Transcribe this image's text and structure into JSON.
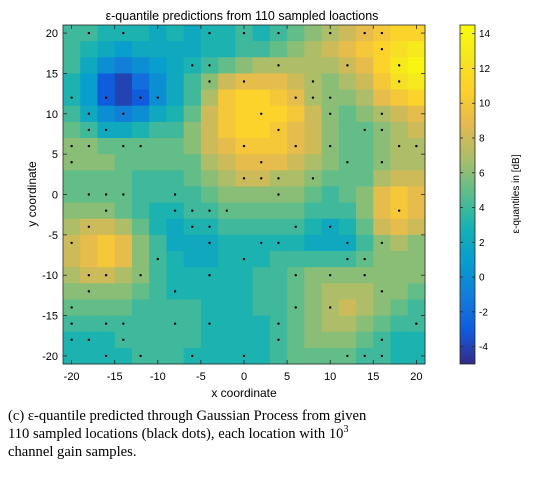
{
  "chart_data": {
    "type": "heatmap",
    "title": "ε-quantile predictions from 110 sampled loactions",
    "xlabel": "x coordinate",
    "ylabel": "y coordinate",
    "colorbar_label": "ε-quantiles in [dB]",
    "xlim": [
      -21,
      21
    ],
    "ylim": [
      -21,
      21
    ],
    "clim": [
      -5,
      14.5
    ],
    "colormap": "parula",
    "x_ticks": [
      -20,
      -15,
      -10,
      -5,
      0,
      5,
      10,
      15,
      20
    ],
    "y_ticks": [
      -20,
      -15,
      -10,
      -5,
      0,
      5,
      10,
      15,
      20
    ],
    "colorbar_ticks": [
      -4,
      -2,
      0,
      2,
      4,
      6,
      8,
      10,
      12,
      14
    ],
    "grid": false,
    "x": [
      -20,
      -18,
      -16,
      -14,
      -12,
      -10,
      -8,
      -6,
      -4,
      -2,
      0,
      2,
      4,
      6,
      8,
      10,
      12,
      14,
      16,
      18,
      20
    ],
    "y": [
      20,
      18,
      16,
      14,
      12,
      10,
      8,
      6,
      4,
      2,
      0,
      -2,
      -4,
      -6,
      -8,
      -10,
      -12,
      -14,
      -16,
      -18,
      -20
    ],
    "z": [
      [
        4,
        4,
        3,
        3,
        3,
        2,
        3,
        2,
        3,
        3,
        4,
        3,
        4,
        5,
        6,
        7,
        8,
        9,
        10,
        11,
        11
      ],
      [
        4,
        3,
        2,
        1,
        2,
        2,
        2,
        2,
        3,
        3,
        4,
        4,
        5,
        6,
        7,
        8,
        9,
        10,
        11,
        12,
        13
      ],
      [
        4,
        2,
        0,
        -1,
        0,
        1,
        2,
        3,
        4,
        5,
        6,
        7,
        7,
        7,
        7,
        7,
        8,
        9,
        11,
        13,
        14
      ],
      [
        3,
        1,
        -3,
        -4,
        -2,
        0,
        2,
        4,
        6,
        8,
        9,
        9,
        9,
        8,
        7,
        6,
        7,
        8,
        10,
        12,
        13
      ],
      [
        3,
        1,
        -3,
        -4,
        -3,
        0,
        2,
        4,
        7,
        10,
        11,
        11,
        10,
        9,
        7,
        6,
        6,
        7,
        9,
        10,
        11
      ],
      [
        4,
        2,
        0,
        -1,
        0,
        2,
        3,
        5,
        8,
        10,
        11,
        11,
        11,
        10,
        8,
        6,
        5,
        6,
        7,
        8,
        9
      ],
      [
        5,
        4,
        2,
        2,
        3,
        4,
        4,
        6,
        8,
        10,
        11,
        11,
        10,
        9,
        8,
        6,
        5,
        5,
        6,
        7,
        8
      ],
      [
        6,
        6,
        5,
        5,
        5,
        5,
        5,
        6,
        8,
        9,
        10,
        10,
        10,
        9,
        8,
        6,
        5,
        5,
        6,
        7,
        7
      ],
      [
        6,
        6,
        6,
        5,
        5,
        5,
        5,
        5,
        7,
        8,
        9,
        9,
        9,
        8,
        7,
        6,
        5,
        5,
        6,
        7,
        7
      ],
      [
        5,
        5,
        5,
        5,
        4,
        4,
        4,
        5,
        6,
        7,
        8,
        8,
        7,
        7,
        6,
        5,
        5,
        5,
        7,
        8,
        8
      ],
      [
        5,
        5,
        5,
        5,
        4,
        4,
        4,
        4,
        5,
        6,
        6,
        6,
        6,
        6,
        5,
        4,
        5,
        6,
        9,
        10,
        9
      ],
      [
        6,
        6,
        6,
        5,
        4,
        3,
        3,
        4,
        4,
        5,
        5,
        5,
        5,
        5,
        4,
        4,
        4,
        6,
        9,
        10,
        9
      ],
      [
        7,
        8,
        8,
        7,
        5,
        3,
        2,
        3,
        3,
        4,
        4,
        4,
        4,
        4,
        3,
        2,
        3,
        5,
        8,
        9,
        8
      ],
      [
        8,
        9,
        10,
        9,
        6,
        4,
        2,
        2,
        2,
        3,
        3,
        3,
        3,
        3,
        2,
        2,
        2,
        4,
        6,
        7,
        6
      ],
      [
        8,
        9,
        10,
        9,
        6,
        4,
        3,
        2,
        2,
        3,
        3,
        3,
        4,
        4,
        4,
        4,
        4,
        5,
        6,
        6,
        6
      ],
      [
        7,
        8,
        8,
        7,
        6,
        4,
        3,
        3,
        3,
        3,
        3,
        4,
        4,
        5,
        6,
        6,
        6,
        6,
        6,
        6,
        6
      ],
      [
        6,
        6,
        6,
        6,
        5,
        4,
        3,
        3,
        3,
        3,
        3,
        4,
        4,
        5,
        6,
        7,
        7,
        7,
        6,
        6,
        5
      ],
      [
        5,
        5,
        5,
        5,
        4,
        4,
        4,
        4,
        3,
        3,
        3,
        4,
        4,
        5,
        6,
        7,
        8,
        7,
        6,
        5,
        4
      ],
      [
        4,
        4,
        4,
        4,
        4,
        4,
        4,
        4,
        3,
        3,
        3,
        3,
        4,
        5,
        6,
        7,
        7,
        6,
        5,
        4,
        4
      ],
      [
        3,
        3,
        3,
        4,
        4,
        4,
        4,
        4,
        3,
        3,
        3,
        3,
        4,
        5,
        6,
        6,
        6,
        5,
        4,
        3,
        3
      ],
      [
        3,
        3,
        3,
        3,
        4,
        4,
        4,
        3,
        3,
        3,
        3,
        3,
        4,
        5,
        5,
        5,
        5,
        4,
        4,
        3,
        3
      ]
    ],
    "sample_points": [
      [
        -18,
        20
      ],
      [
        -14,
        20
      ],
      [
        -4,
        20
      ],
      [
        0,
        20
      ],
      [
        4,
        20
      ],
      [
        10,
        20
      ],
      [
        14,
        20
      ],
      [
        16,
        20
      ],
      [
        16,
        18
      ],
      [
        -6,
        16
      ],
      [
        -4,
        16
      ],
      [
        4,
        16
      ],
      [
        12,
        16
      ],
      [
        18,
        16
      ],
      [
        -4,
        14
      ],
      [
        0,
        14
      ],
      [
        8,
        14
      ],
      [
        18,
        14
      ],
      [
        -20,
        12
      ],
      [
        -16,
        12
      ],
      [
        -12,
        12
      ],
      [
        -10,
        12
      ],
      [
        6,
        12
      ],
      [
        8,
        12
      ],
      [
        10,
        12
      ],
      [
        -18,
        10
      ],
      [
        -14,
        10
      ],
      [
        2,
        10
      ],
      [
        10,
        10
      ],
      [
        16,
        10
      ],
      [
        -18,
        8
      ],
      [
        -16,
        8
      ],
      [
        4,
        8
      ],
      [
        14,
        8
      ],
      [
        16,
        8
      ],
      [
        -20,
        6
      ],
      [
        -18,
        6
      ],
      [
        -14,
        6
      ],
      [
        -12,
        6
      ],
      [
        0,
        6
      ],
      [
        6,
        6
      ],
      [
        10,
        6
      ],
      [
        18,
        6
      ],
      [
        20,
        6
      ],
      [
        -20,
        4
      ],
      [
        2,
        4
      ],
      [
        12,
        4
      ],
      [
        16,
        4
      ],
      [
        0,
        2
      ],
      [
        2,
        2
      ],
      [
        4,
        2
      ],
      [
        8,
        2
      ],
      [
        -18,
        0
      ],
      [
        -16,
        0
      ],
      [
        -14,
        0
      ],
      [
        -8,
        0
      ],
      [
        4,
        0
      ],
      [
        -6,
        -2
      ],
      [
        -4,
        -2
      ],
      [
        -16,
        -2
      ],
      [
        -8,
        -2
      ],
      [
        -2,
        -2
      ],
      [
        18,
        -2
      ],
      [
        -18,
        -4
      ],
      [
        -4,
        -4
      ],
      [
        6,
        -4
      ],
      [
        10,
        -4
      ],
      [
        -6,
        -4
      ],
      [
        -20,
        -6
      ],
      [
        -4,
        -6
      ],
      [
        2,
        -6
      ],
      [
        4,
        -6
      ],
      [
        12,
        -6
      ],
      [
        16,
        -6
      ],
      [
        -10,
        -8
      ],
      [
        0,
        -8
      ],
      [
        12,
        -8
      ],
      [
        14,
        -8
      ],
      [
        -18,
        -10
      ],
      [
        -16,
        -10
      ],
      [
        -12,
        -10
      ],
      [
        -4,
        -10
      ],
      [
        6,
        -10
      ],
      [
        10,
        -10
      ],
      [
        14,
        -10
      ],
      [
        -18,
        -12
      ],
      [
        -8,
        -12
      ],
      [
        16,
        -12
      ],
      [
        -20,
        -14
      ],
      [
        6,
        -14
      ],
      [
        10,
        -14
      ],
      [
        -20,
        -16
      ],
      [
        -16,
        -16
      ],
      [
        -14,
        -16
      ],
      [
        -8,
        -16
      ],
      [
        -4,
        -16
      ],
      [
        4,
        -16
      ],
      [
        20,
        -16
      ],
      [
        -20,
        -18
      ],
      [
        -18,
        -18
      ],
      [
        -14,
        -18
      ],
      [
        4,
        -18
      ],
      [
        16,
        -18
      ],
      [
        -16,
        -20
      ],
      [
        -12,
        -20
      ],
      [
        -6,
        -20
      ],
      [
        0,
        -20
      ],
      [
        12,
        -20
      ],
      [
        14,
        -20
      ],
      [
        16,
        -20
      ]
    ]
  },
  "caption": {
    "line1": "(c) ε-quantile predicted through Gaussian Process from given",
    "line2": "110 sampled locations (black dots), each location with 10",
    "line2_sup": "3",
    "line3": "channel gain samples."
  }
}
